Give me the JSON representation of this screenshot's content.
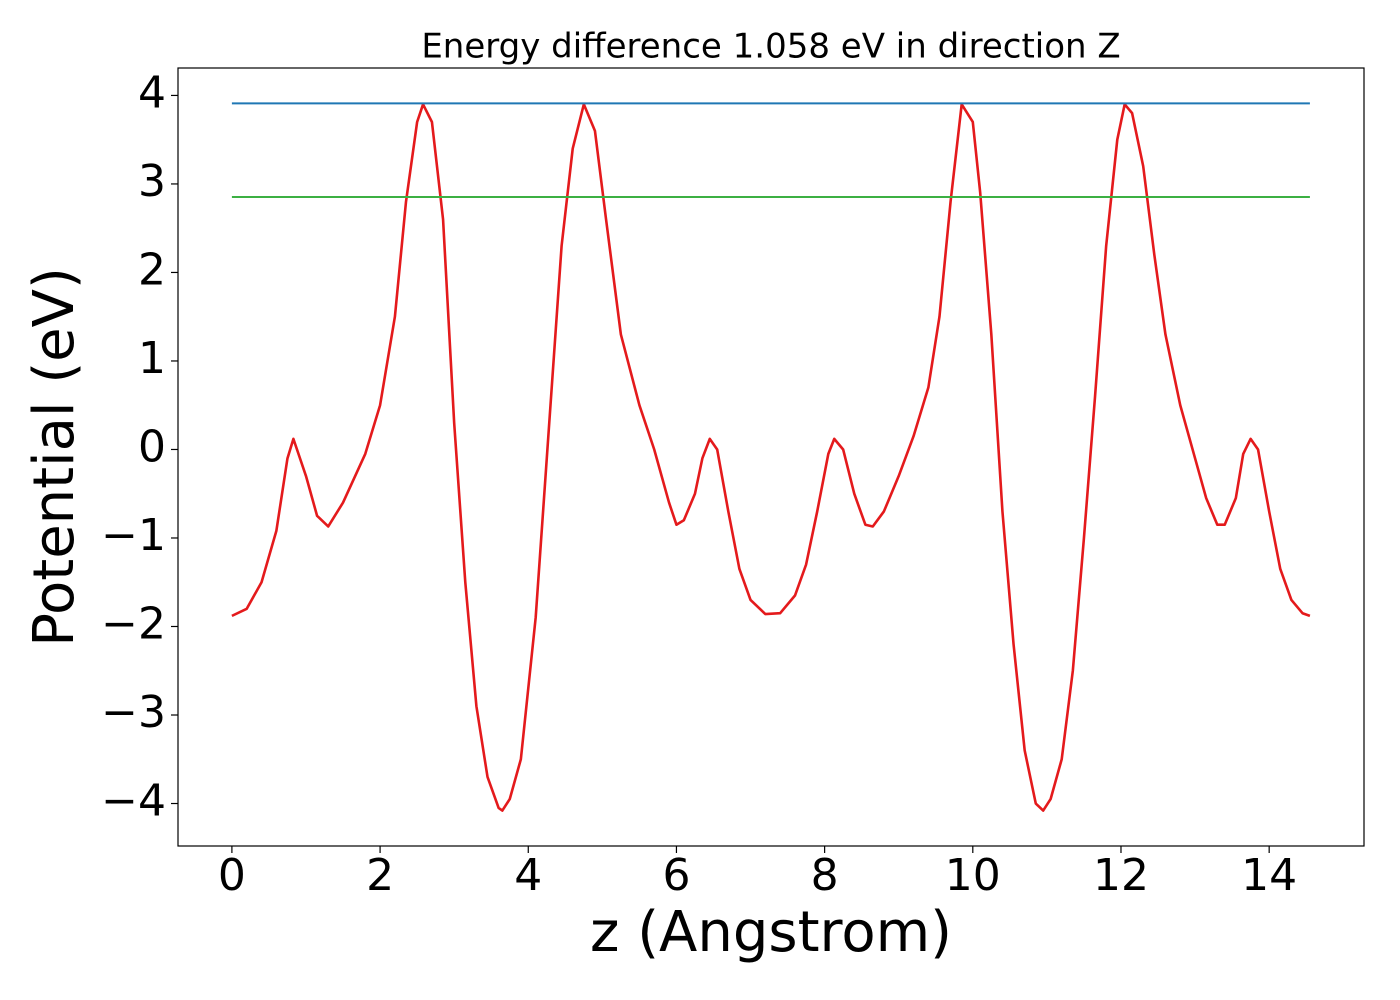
{
  "chart_data": {
    "type": "line",
    "title": "Energy difference 1.058 eV in direction Z",
    "x_label": "z (Angstrom)",
    "y_label": "Potential (eV)",
    "xlim": [
      -0.7275,
      15.28
    ],
    "ylim": [
      -4.48,
      4.31
    ],
    "xticks": [
      0,
      2,
      4,
      6,
      8,
      10,
      12,
      14
    ],
    "yticks": [
      {
        "value": -4,
        "label": "−4"
      },
      {
        "value": -3,
        "label": "−3"
      },
      {
        "value": -2,
        "label": "−2"
      },
      {
        "value": -1,
        "label": "−1"
      },
      0,
      1,
      2,
      3,
      4
    ],
    "grid": false,
    "series": [
      {
        "color": "#e41a1c",
        "x": [
          0,
          0.2,
          0.4,
          0.6,
          0.75,
          0.83,
          1.0,
          1.15,
          1.3,
          1.5,
          1.8,
          2.0,
          2.2,
          2.35,
          2.5,
          2.58,
          2.7,
          2.85,
          3.0,
          3.15,
          3.3,
          3.45,
          3.6,
          3.65,
          3.75,
          3.9,
          4.1,
          4.3,
          4.45,
          4.6,
          4.75,
          4.9,
          5.05,
          5.25,
          5.5,
          5.7,
          5.9,
          6.0,
          6.1,
          6.25,
          6.35,
          6.45,
          6.55,
          6.7,
          6.85,
          7.0,
          7.2,
          7.4,
          7.6,
          7.75,
          7.9,
          8.05,
          8.13,
          8.25,
          8.4,
          8.55,
          8.65,
          8.8,
          9.0,
          9.2,
          9.4,
          9.55,
          9.7,
          9.85,
          10.0,
          10.1,
          10.25,
          10.4,
          10.55,
          10.7,
          10.85,
          10.95,
          11.05,
          11.2,
          11.35,
          11.5,
          11.65,
          11.8,
          11.95,
          12.05,
          12.15,
          12.3,
          12.45,
          12.6,
          12.8,
          13.0,
          13.15,
          13.3,
          13.4,
          13.55,
          13.65,
          13.75,
          13.85,
          14.0,
          14.15,
          14.3,
          14.45,
          14.55
        ],
        "values": [
          -1.88,
          -1.8,
          -1.5,
          -0.92,
          -0.1,
          0.12,
          -0.3,
          -0.75,
          -0.87,
          -0.6,
          -0.05,
          0.5,
          1.5,
          2.8,
          3.7,
          3.9,
          3.7,
          2.6,
          0.3,
          -1.5,
          -2.9,
          -3.7,
          -4.05,
          -4.08,
          -3.95,
          -3.5,
          -1.9,
          0.5,
          2.3,
          3.4,
          3.9,
          3.6,
          2.6,
          1.3,
          0.5,
          0.0,
          -0.6,
          -0.85,
          -0.8,
          -0.5,
          -0.1,
          0.12,
          0.0,
          -0.7,
          -1.35,
          -1.7,
          -1.86,
          -1.85,
          -1.65,
          -1.3,
          -0.7,
          -0.05,
          0.12,
          0.0,
          -0.5,
          -0.85,
          -0.87,
          -0.7,
          -0.3,
          0.15,
          0.7,
          1.5,
          2.8,
          3.9,
          3.7,
          2.9,
          1.3,
          -0.7,
          -2.2,
          -3.4,
          -4.0,
          -4.08,
          -3.95,
          -3.5,
          -2.5,
          -1.0,
          0.6,
          2.3,
          3.5,
          3.9,
          3.8,
          3.2,
          2.2,
          1.3,
          0.5,
          -0.1,
          -0.55,
          -0.85,
          -0.85,
          -0.55,
          -0.05,
          0.12,
          0.0,
          -0.7,
          -1.35,
          -1.7,
          -1.85,
          -1.88
        ]
      },
      {
        "color": "#1f77b4",
        "x": [
          0,
          14.55
        ],
        "values": [
          3.91,
          3.91
        ]
      },
      {
        "color": "#3cb043",
        "x": [
          0,
          14.55
        ],
        "values": [
          2.852,
          2.852
        ]
      }
    ]
  }
}
